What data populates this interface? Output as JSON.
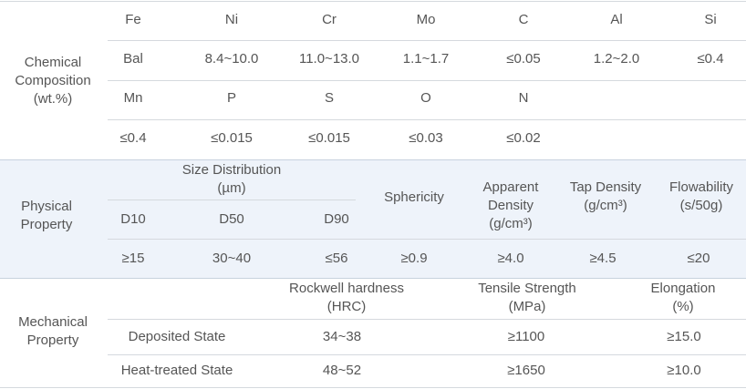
{
  "chemical": {
    "label": "Chemical\nComposition\n(wt.%)",
    "rows": [
      [
        "Fe",
        "Ni",
        "Cr",
        "Mo",
        "C",
        "Al",
        "Si"
      ],
      [
        "Bal",
        "8.4~10.0",
        "11.0~13.0",
        "1.1~1.7",
        "≤0.05",
        "1.2~2.0",
        "≤0.4"
      ],
      [
        "Mn",
        "P",
        "S",
        "O",
        "N"
      ],
      [
        "≤0.4",
        "≤0.015",
        "≤0.015",
        "≤0.03",
        "≤0.02"
      ]
    ]
  },
  "physical": {
    "label": "Physical\nProperty",
    "headers": [
      "Size Distribution\n(µm)",
      "Sphericity",
      "Apparent\nDensity\n(g/cm³)",
      "Tap Density\n(g/cm³)",
      "Flowability\n(s/50g)"
    ],
    "sub_headers": [
      "D10",
      "D50",
      "D90"
    ],
    "values": [
      "≥15",
      "30~40",
      "≤56",
      "≥0.9",
      "≥4.0",
      "≥4.5",
      "≤20"
    ]
  },
  "mechanical": {
    "label": "Mechanical\nProperty",
    "headers": [
      "Rockwell hardness\n(HRC)",
      "Tensile Strength\n(MPa)",
      "Elongation\n(%)"
    ],
    "rows": [
      [
        "Deposited State",
        "34~38",
        "≥1100",
        "≥15.0"
      ],
      [
        "Heat-treated State",
        "48~52",
        "≥1650",
        "≥10.0"
      ]
    ]
  }
}
